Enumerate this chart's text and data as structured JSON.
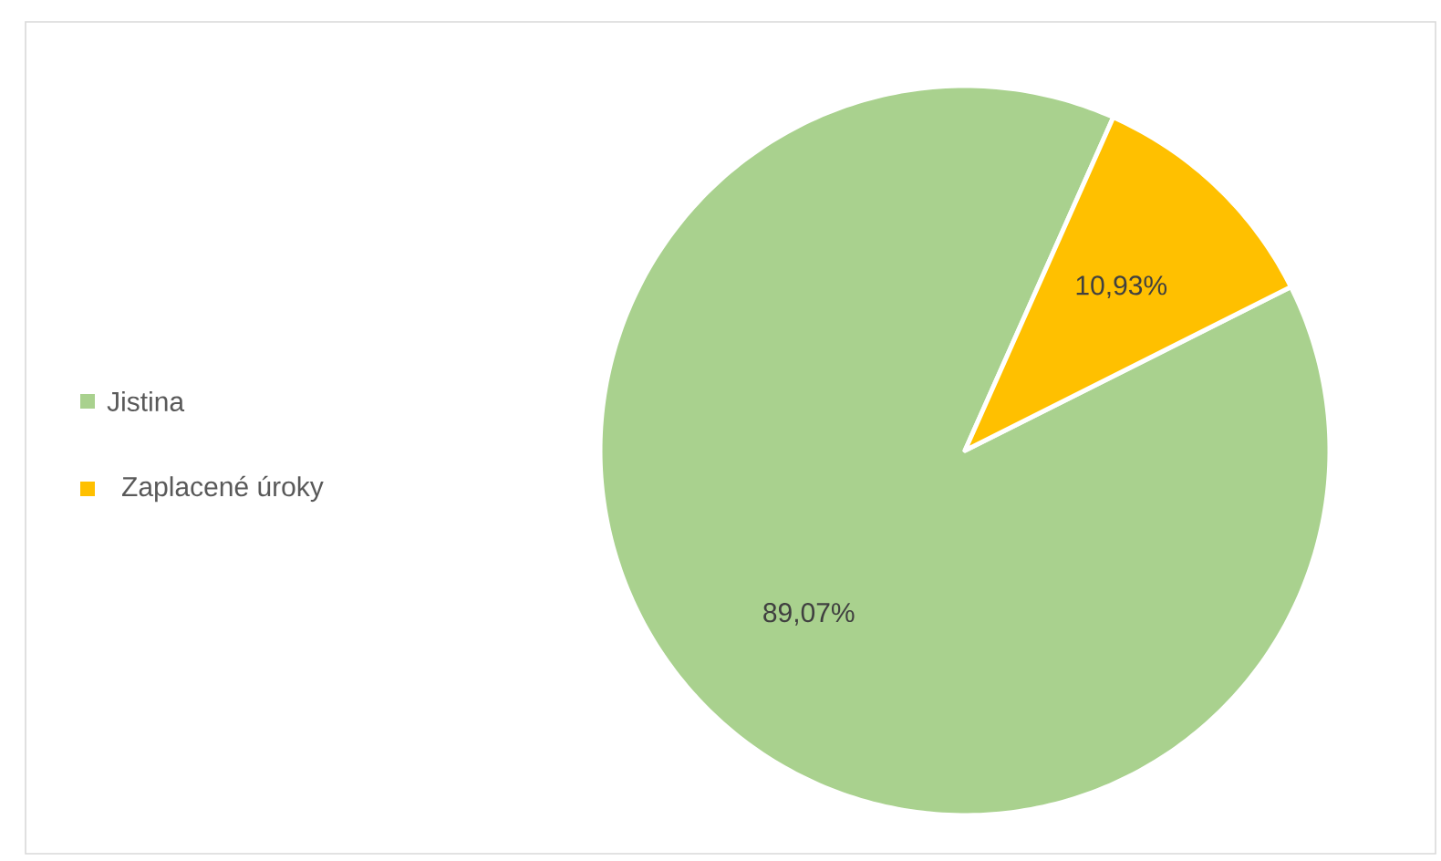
{
  "chart_data": {
    "type": "pie",
    "categories": [
      "Jistina",
      "Zaplacené úroky"
    ],
    "values": [
      89.07,
      10.93
    ],
    "colors": [
      "#a9d18e",
      "#ffc000"
    ],
    "value_labels": [
      "89,07%",
      "10,93%"
    ],
    "legend": "left"
  }
}
